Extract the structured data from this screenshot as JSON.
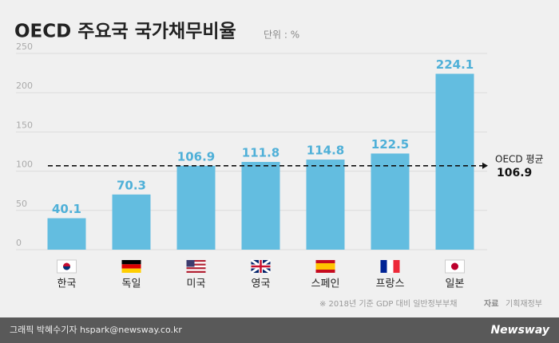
{
  "chart_data": {
    "type": "bar",
    "title": "OECD 주요국 국가채무비율",
    "unit_label": "단위 : %",
    "categories": [
      "한국",
      "독일",
      "미국",
      "영국",
      "스페인",
      "프랑스",
      "일본"
    ],
    "values": [
      40.1,
      70.3,
      106.9,
      111.8,
      114.8,
      122.5,
      224.1
    ],
    "color": "#63bde0",
    "ylim": [
      0,
      250
    ],
    "yticks": [
      0,
      50,
      100,
      150,
      200,
      250
    ],
    "grid": true,
    "reference_line": {
      "label": "OECD 평균",
      "value": 106.9
    },
    "note": "※  2018년 기준 GDP 대비 일반정부부채",
    "source": {
      "label": "자료",
      "text": "기획재정부"
    }
  },
  "footer": {
    "credit": "그래픽 박혜수기자 hspark@newsway.co.kr",
    "brand": "Newsway"
  }
}
